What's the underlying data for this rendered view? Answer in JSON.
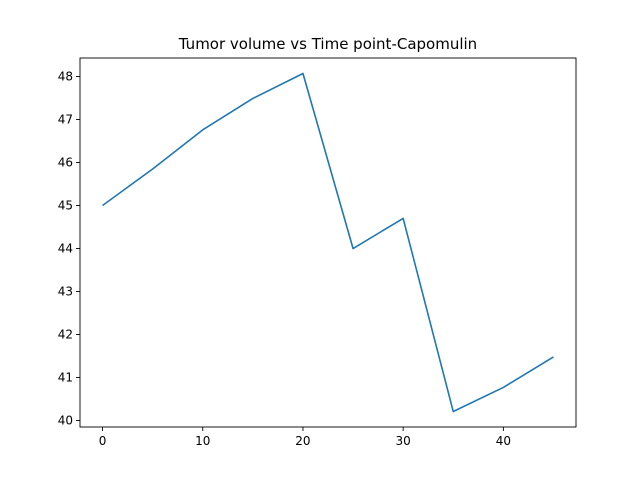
{
  "chart_data": {
    "type": "line",
    "title": "Tumor volume vs Time point-Capomulin",
    "xlabel": "",
    "ylabel": "",
    "x": [
      0,
      5,
      10,
      15,
      20,
      25,
      30,
      35,
      40,
      45
    ],
    "series": [
      {
        "values": [
          45.0,
          45.85,
          46.76,
          47.49,
          48.07,
          44.0,
          44.7,
          40.21,
          40.77,
          41.48
        ]
      }
    ],
    "xlim": [
      -2.25,
      47.25
    ],
    "ylim": [
      39.85,
      48.43
    ],
    "xticks": [
      0,
      10,
      20,
      30,
      40
    ],
    "yticks": [
      40,
      41,
      42,
      43,
      44,
      45,
      46,
      47,
      48
    ],
    "grid": false,
    "line_color": "#1f77b4"
  }
}
